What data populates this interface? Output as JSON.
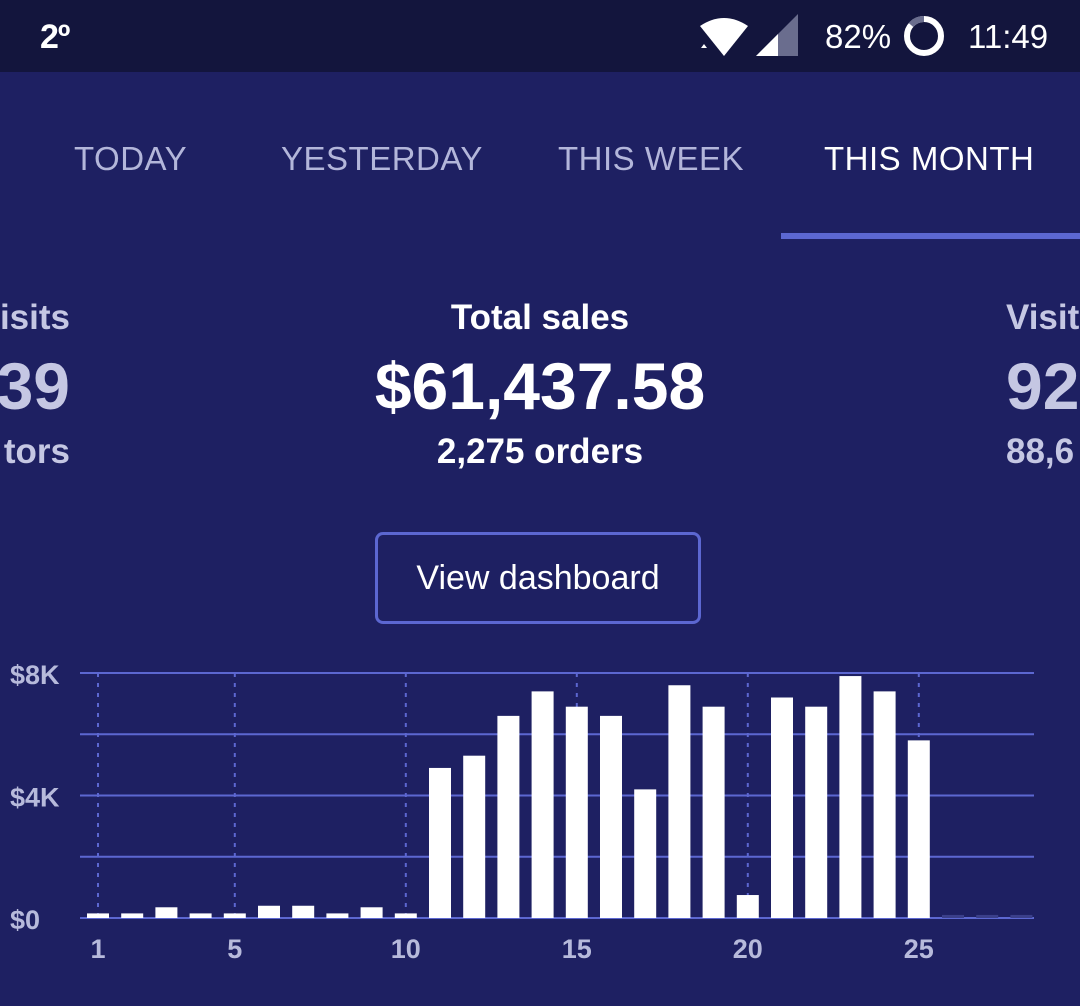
{
  "status_bar": {
    "temperature": "2º",
    "battery": "82%",
    "time": "11:49"
  },
  "tabs": [
    {
      "label": "TODAY",
      "active": false
    },
    {
      "label": "YESTERDAY",
      "active": false
    },
    {
      "label": "THIS WEEK",
      "active": false
    },
    {
      "label": "THIS MONTH",
      "active": true
    }
  ],
  "stats": {
    "left": {
      "label": "isits",
      "value": "39",
      "sub": "tors"
    },
    "center": {
      "label": "Total sales",
      "value": "$61,437.58",
      "sub": "2,275 orders"
    },
    "right": {
      "label": "Visit",
      "value": "92",
      "sub": "88,6"
    }
  },
  "view_button": "View dashboard",
  "colors": {
    "background": "#1e2062",
    "status_bar": "#13153d",
    "accent": "#5c67d1",
    "bar": "#ffffff"
  },
  "chart_data": {
    "type": "bar",
    "x": [
      1,
      2,
      3,
      4,
      5,
      6,
      7,
      8,
      9,
      10,
      11,
      12,
      13,
      14,
      15,
      16,
      17,
      18,
      19,
      20,
      21,
      22,
      23,
      24,
      25,
      26,
      27,
      28
    ],
    "values": [
      150,
      150,
      350,
      150,
      150,
      400,
      400,
      150,
      350,
      150,
      4900,
      5300,
      6600,
      7400,
      6900,
      6600,
      4200,
      7600,
      6900,
      750,
      7200,
      6900,
      7900,
      7400,
      5800,
      100,
      100,
      100
    ],
    "x_tick_labels": [
      "1",
      "5",
      "10",
      "15",
      "20",
      "25"
    ],
    "y_tick_labels": [
      "$8K",
      "$4K",
      "$0"
    ],
    "ylim": [
      0,
      8000
    ],
    "grid": true
  }
}
